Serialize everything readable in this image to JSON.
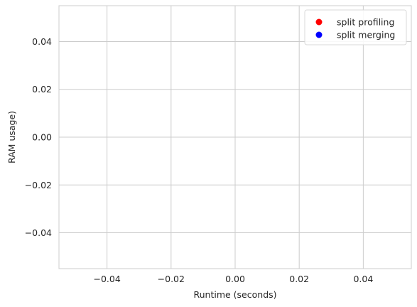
{
  "chart_data": {
    "type": "scatter",
    "title": "",
    "xlabel": "Runtime (seconds)",
    "ylabel": "RAM usage)",
    "xlim": [
      -0.055,
      0.055
    ],
    "ylim": [
      -0.055,
      0.055
    ],
    "xticks": [
      -0.04,
      -0.02,
      0.0,
      0.02,
      0.04
    ],
    "xtick_labels": [
      "−0.04",
      "−0.02",
      "0.00",
      "0.02",
      "0.04"
    ],
    "yticks": [
      -0.04,
      -0.02,
      0.0,
      0.02,
      0.04
    ],
    "ytick_labels": [
      "−0.04",
      "−0.02",
      "0.00",
      "0.02",
      "0.04"
    ],
    "grid": true,
    "legend_position": "top-right",
    "series": [
      {
        "name": "split profiling",
        "color": "#ff0000",
        "x": [],
        "y": []
      },
      {
        "name": "split merging",
        "color": "#0000ff",
        "x": [],
        "y": []
      }
    ]
  }
}
